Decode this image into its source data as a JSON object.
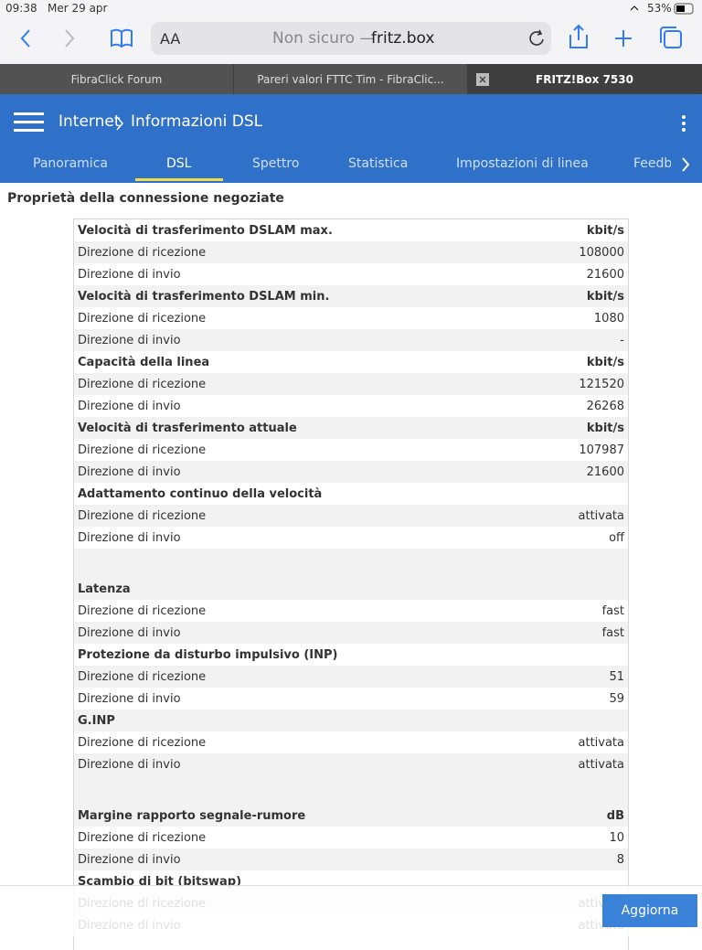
{
  "status_bar": {
    "time": "09:38",
    "date": "Mer 29 apr",
    "battery": "53%"
  },
  "browser": {
    "text_size": "AA",
    "security": "Non sicuro —",
    "host": "fritz.box",
    "tabs": [
      "FibraClick Forum",
      "Pareri valori FTTC Tim - FibraClic...",
      "FRITZ!Box 7530"
    ]
  },
  "header": {
    "breadcrumb": [
      "Internet",
      "Informazioni DSL"
    ]
  },
  "nav": {
    "items": [
      "Panoramica",
      "DSL",
      "Spettro",
      "Statistica",
      "Impostazioni di linea",
      "Feedb"
    ]
  },
  "section": {
    "title": "Proprietà della connessione negoziate"
  },
  "table": {
    "blocks": [
      {
        "groups": [
          {
            "title": "Velocità di trasferimento DSLAM max.",
            "unit": "kbit/s",
            "rows": [
              [
                "Direzione di ricezione",
                "108000"
              ],
              [
                "Direzione di invio",
                "21600"
              ]
            ]
          },
          {
            "title": "Velocità di trasferimento DSLAM min.",
            "unit": "kbit/s",
            "rows": [
              [
                "Direzione di ricezione",
                "1080"
              ],
              [
                "Direzione di invio",
                "-"
              ]
            ]
          },
          {
            "title": "Capacità della linea",
            "unit": "kbit/s",
            "rows": [
              [
                "Direzione di ricezione",
                "121520"
              ],
              [
                "Direzione di invio",
                "26268"
              ]
            ]
          },
          {
            "title": "Velocità di trasferimento attuale",
            "unit": "kbit/s",
            "rows": [
              [
                "Direzione di ricezione",
                "107987"
              ],
              [
                "Direzione di invio",
                "21600"
              ]
            ]
          },
          {
            "title": "Adattamento continuo della velocità",
            "rows": [
              [
                "Direzione di ricezione",
                "attivata"
              ],
              [
                "Direzione di invio",
                "off"
              ]
            ]
          }
        ]
      },
      {
        "groups": [
          {
            "title": "Latenza",
            "rows": [
              [
                "Direzione di ricezione",
                "fast"
              ],
              [
                "Direzione di invio",
                "fast"
              ]
            ]
          },
          {
            "title": "Protezione da disturbo impulsivo (INP)",
            "rows": [
              [
                "Direzione di ricezione",
                "51"
              ],
              [
                "Direzione di invio",
                "59"
              ]
            ]
          },
          {
            "title": "G.INP",
            "rows": [
              [
                "Direzione di ricezione",
                "attivata"
              ],
              [
                "Direzione di invio",
                "attivata"
              ]
            ]
          }
        ]
      },
      {
        "groups": [
          {
            "title": "Margine rapporto segnale-rumore",
            "unit": "dB",
            "rows": [
              [
                "Direzione di ricezione",
                "10"
              ],
              [
                "Direzione di invio",
                "8"
              ]
            ]
          },
          {
            "title": "Scambio di bit (bitswap)",
            "rows": [
              [
                "Direzione di ricezione",
                "attivata"
              ],
              [
                "Direzione di invio",
                "attivata"
              ]
            ]
          }
        ]
      }
    ]
  },
  "footer": {
    "button": "Aggiorna"
  }
}
